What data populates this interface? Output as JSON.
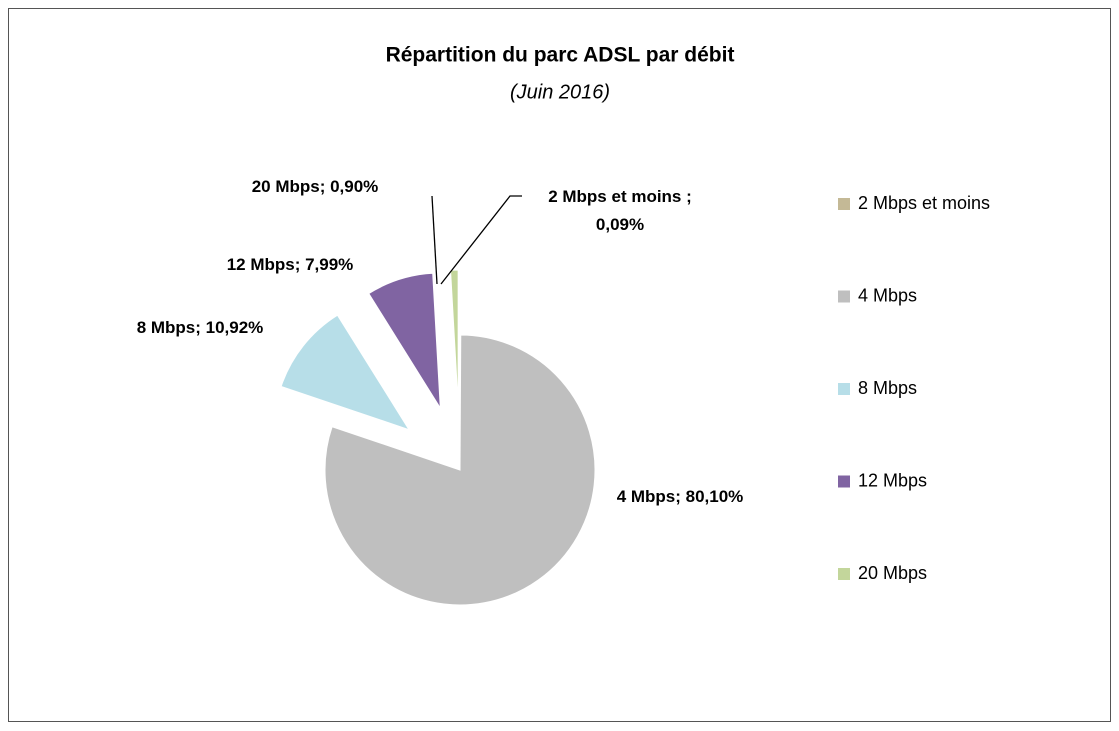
{
  "chart_data": {
    "type": "pie",
    "title": "Répartition du parc ADSL par débit",
    "subtitle": "(Juin 2016)",
    "categories": [
      "2 Mbps et moins",
      "4 Mbps",
      "8 Mbps",
      "12 Mbps",
      "20 Mbps"
    ],
    "values": [
      0.09,
      80.1,
      10.92,
      7.99,
      0.9
    ],
    "value_labels": [
      "2 Mbps et moins ; 0,09%",
      "4 Mbps; 80,10%",
      "8 Mbps; 10,92%",
      "12 Mbps; 7,99%",
      "20 Mbps; 0,90%"
    ],
    "colors": [
      "#c4b996",
      "#bfbfbf",
      "#b7dee8",
      "#8064a2",
      "#c3d69b"
    ],
    "exploded": [
      false,
      false,
      true,
      true,
      true
    ],
    "legend": "right"
  }
}
